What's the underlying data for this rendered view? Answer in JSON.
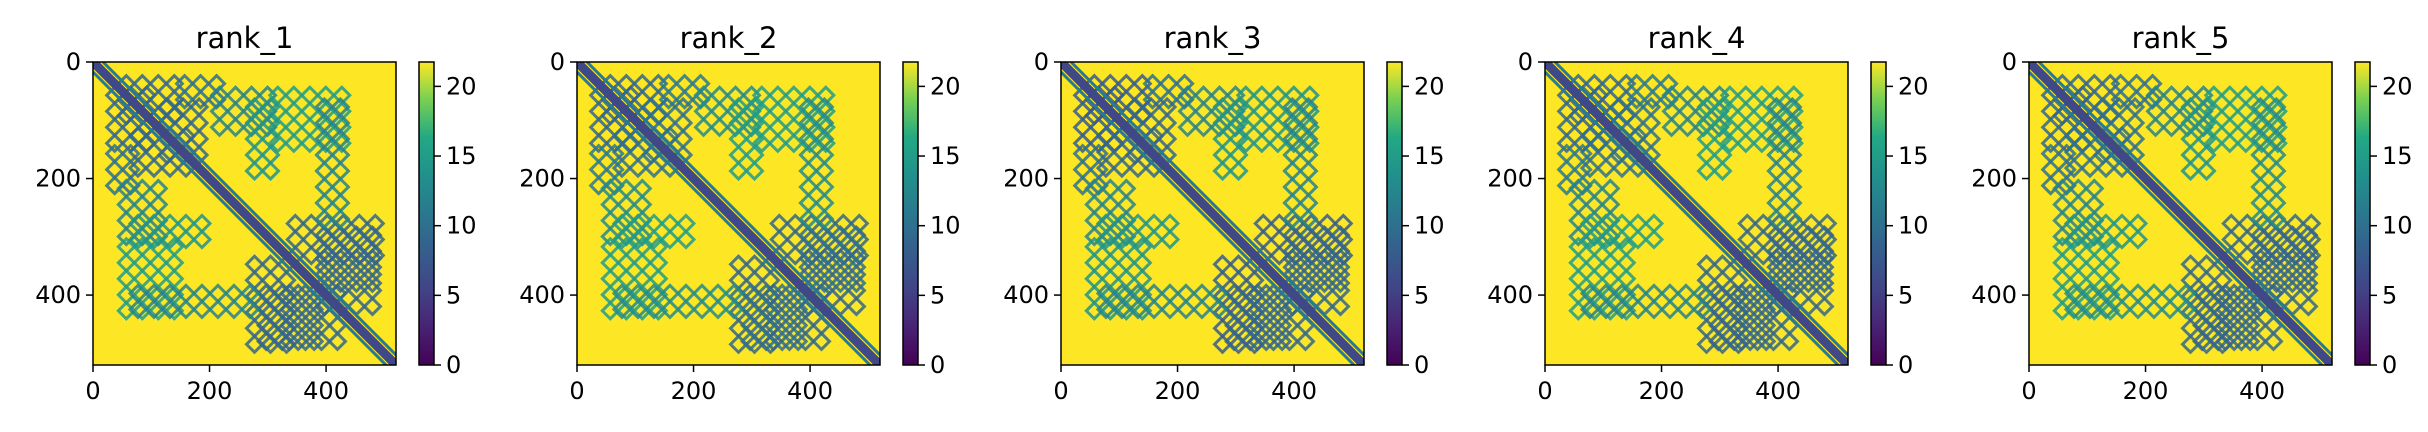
{
  "chart_data": [
    {
      "type": "heatmap",
      "title": "rank_1",
      "xlabel": "",
      "ylabel": "",
      "x_range": [
        0,
        520
      ],
      "y_range": [
        520,
        0
      ],
      "x_ticks": [
        0,
        200,
        400
      ],
      "y_ticks": [
        0,
        200,
        400
      ],
      "colorbar": {
        "range": [
          0,
          21.75
        ],
        "ticks": [
          0,
          5,
          10,
          15,
          20
        ],
        "colormap": "viridis"
      },
      "background_value": 21.75,
      "diagonal_value": 6,
      "contact_features": [
        {
          "x0": 40,
          "y0": 20,
          "x1": 150,
          "y1": 90,
          "value": 9
        },
        {
          "x0": 140,
          "y0": 20,
          "x1": 220,
          "y1": 60,
          "value": 10
        },
        {
          "x0": 60,
          "y0": 110,
          "x1": 160,
          "y1": 200,
          "value": 9
        },
        {
          "x0": 200,
          "y0": 40,
          "x1": 300,
          "y1": 120,
          "value": 12
        },
        {
          "x0": 300,
          "y0": 40,
          "x1": 440,
          "y1": 160,
          "value": 15
        },
        {
          "x0": 330,
          "y0": 260,
          "x1": 480,
          "y1": 340,
          "value": 9
        },
        {
          "x0": 380,
          "y0": 320,
          "x1": 500,
          "y1": 420,
          "value": 9
        },
        {
          "x0": 280,
          "y0": 380,
          "x1": 400,
          "y1": 480,
          "value": 9
        },
        {
          "x0": 60,
          "y0": 380,
          "x1": 280,
          "y1": 440,
          "value": 12
        },
        {
          "x0": 60,
          "y0": 260,
          "x1": 200,
          "y1": 300,
          "value": 14
        }
      ]
    },
    {
      "type": "heatmap",
      "title": "rank_2",
      "xlabel": "",
      "ylabel": "",
      "x_range": [
        0,
        520
      ],
      "y_range": [
        520,
        0
      ],
      "x_ticks": [
        0,
        200,
        400
      ],
      "y_ticks": [
        0,
        200,
        400
      ],
      "colorbar": {
        "range": [
          0,
          21.75
        ],
        "ticks": [
          0,
          5,
          10,
          15,
          20
        ],
        "colormap": "viridis"
      },
      "background_value": 21.75,
      "diagonal_value": 6,
      "contact_features": [
        {
          "x0": 40,
          "y0": 20,
          "x1": 150,
          "y1": 90,
          "value": 9
        },
        {
          "x0": 140,
          "y0": 20,
          "x1": 220,
          "y1": 60,
          "value": 11
        },
        {
          "x0": 60,
          "y0": 110,
          "x1": 160,
          "y1": 200,
          "value": 10
        },
        {
          "x0": 200,
          "y0": 40,
          "x1": 300,
          "y1": 120,
          "value": 13
        },
        {
          "x0": 300,
          "y0": 40,
          "x1": 440,
          "y1": 160,
          "value": 15
        },
        {
          "x0": 330,
          "y0": 260,
          "x1": 480,
          "y1": 340,
          "value": 9
        },
        {
          "x0": 380,
          "y0": 320,
          "x1": 500,
          "y1": 420,
          "value": 9
        },
        {
          "x0": 280,
          "y0": 380,
          "x1": 400,
          "y1": 480,
          "value": 10
        },
        {
          "x0": 60,
          "y0": 380,
          "x1": 280,
          "y1": 440,
          "value": 13
        },
        {
          "x0": 60,
          "y0": 260,
          "x1": 200,
          "y1": 300,
          "value": 15
        }
      ]
    },
    {
      "type": "heatmap",
      "title": "rank_3",
      "xlabel": "",
      "ylabel": "",
      "x_range": [
        0,
        520
      ],
      "y_range": [
        520,
        0
      ],
      "x_ticks": [
        0,
        200,
        400
      ],
      "y_ticks": [
        0,
        200,
        400
      ],
      "colorbar": {
        "range": [
          0,
          21.75
        ],
        "ticks": [
          0,
          5,
          10,
          15,
          20
        ],
        "colormap": "viridis"
      },
      "background_value": 21.75,
      "diagonal_value": 6,
      "contact_features": [
        {
          "x0": 40,
          "y0": 20,
          "x1": 150,
          "y1": 90,
          "value": 8
        },
        {
          "x0": 140,
          "y0": 20,
          "x1": 220,
          "y1": 60,
          "value": 10
        },
        {
          "x0": 60,
          "y0": 110,
          "x1": 160,
          "y1": 200,
          "value": 9
        },
        {
          "x0": 200,
          "y0": 40,
          "x1": 300,
          "y1": 120,
          "value": 12
        },
        {
          "x0": 300,
          "y0": 40,
          "x1": 440,
          "y1": 160,
          "value": 14
        },
        {
          "x0": 330,
          "y0": 260,
          "x1": 480,
          "y1": 340,
          "value": 8
        },
        {
          "x0": 380,
          "y0": 320,
          "x1": 500,
          "y1": 420,
          "value": 9
        },
        {
          "x0": 280,
          "y0": 380,
          "x1": 400,
          "y1": 480,
          "value": 9
        },
        {
          "x0": 60,
          "y0": 380,
          "x1": 280,
          "y1": 440,
          "value": 12
        },
        {
          "x0": 60,
          "y0": 260,
          "x1": 200,
          "y1": 300,
          "value": 14
        }
      ]
    },
    {
      "type": "heatmap",
      "title": "rank_4",
      "xlabel": "",
      "ylabel": "",
      "x_range": [
        0,
        520
      ],
      "y_range": [
        520,
        0
      ],
      "x_ticks": [
        0,
        200,
        400
      ],
      "y_ticks": [
        0,
        200,
        400
      ],
      "colorbar": {
        "range": [
          0,
          21.75
        ],
        "ticks": [
          0,
          5,
          10,
          15,
          20
        ],
        "colormap": "viridis"
      },
      "background_value": 21.75,
      "diagonal_value": 6,
      "contact_features": [
        {
          "x0": 40,
          "y0": 20,
          "x1": 150,
          "y1": 90,
          "value": 9
        },
        {
          "x0": 140,
          "y0": 20,
          "x1": 220,
          "y1": 60,
          "value": 11
        },
        {
          "x0": 60,
          "y0": 110,
          "x1": 160,
          "y1": 200,
          "value": 10
        },
        {
          "x0": 200,
          "y0": 40,
          "x1": 300,
          "y1": 120,
          "value": 12
        },
        {
          "x0": 300,
          "y0": 40,
          "x1": 440,
          "y1": 160,
          "value": 15
        },
        {
          "x0": 330,
          "y0": 260,
          "x1": 480,
          "y1": 340,
          "value": 9
        },
        {
          "x0": 380,
          "y0": 320,
          "x1": 500,
          "y1": 420,
          "value": 9
        },
        {
          "x0": 280,
          "y0": 380,
          "x1": 400,
          "y1": 480,
          "value": 9
        },
        {
          "x0": 60,
          "y0": 380,
          "x1": 280,
          "y1": 440,
          "value": 12
        },
        {
          "x0": 60,
          "y0": 260,
          "x1": 200,
          "y1": 300,
          "value": 15
        }
      ]
    },
    {
      "type": "heatmap",
      "title": "rank_5",
      "xlabel": "",
      "ylabel": "",
      "x_range": [
        0,
        520
      ],
      "y_range": [
        520,
        0
      ],
      "x_ticks": [
        0,
        200,
        400
      ],
      "y_ticks": [
        0,
        200,
        400
      ],
      "colorbar": {
        "range": [
          0,
          21.75
        ],
        "ticks": [
          0,
          5,
          10,
          15,
          20
        ],
        "colormap": "viridis"
      },
      "background_value": 21.75,
      "diagonal_value": 6,
      "contact_features": [
        {
          "x0": 40,
          "y0": 20,
          "x1": 150,
          "y1": 90,
          "value": 9
        },
        {
          "x0": 140,
          "y0": 20,
          "x1": 220,
          "y1": 60,
          "value": 10
        },
        {
          "x0": 60,
          "y0": 110,
          "x1": 160,
          "y1": 200,
          "value": 10
        },
        {
          "x0": 200,
          "y0": 40,
          "x1": 300,
          "y1": 120,
          "value": 12
        },
        {
          "x0": 300,
          "y0": 40,
          "x1": 440,
          "y1": 160,
          "value": 15
        },
        {
          "x0": 330,
          "y0": 260,
          "x1": 480,
          "y1": 340,
          "value": 9
        },
        {
          "x0": 380,
          "y0": 320,
          "x1": 500,
          "y1": 420,
          "value": 9
        },
        {
          "x0": 280,
          "y0": 380,
          "x1": 400,
          "y1": 480,
          "value": 9
        },
        {
          "x0": 60,
          "y0": 380,
          "x1": 280,
          "y1": 440,
          "value": 13
        },
        {
          "x0": 60,
          "y0": 260,
          "x1": 200,
          "y1": 300,
          "value": 14
        }
      ]
    }
  ]
}
